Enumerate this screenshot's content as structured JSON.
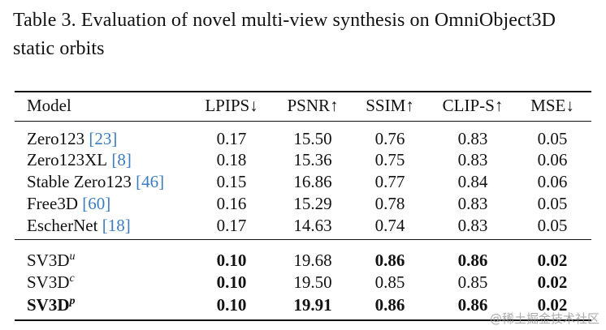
{
  "caption": "Table 3.  Evaluation of novel multi-view synthesis on OmniObject3D static orbits",
  "table": {
    "header": [
      "Model",
      "LPIPS↓",
      "PSNR↑",
      "SSIM↑",
      "CLIP-S↑",
      "MSE↓"
    ],
    "rows": [
      {
        "model": {
          "name": "Zero123",
          "cite": "[23]"
        },
        "cells": [
          {
            "text": "0.17"
          },
          {
            "text": "15.50"
          },
          {
            "text": "0.76"
          },
          {
            "text": "0.83"
          },
          {
            "text": "0.05"
          }
        ]
      },
      {
        "model": {
          "name": "Zero123XL",
          "cite": "[8]"
        },
        "cells": [
          {
            "text": "0.18"
          },
          {
            "text": "15.36"
          },
          {
            "text": "0.75"
          },
          {
            "text": "0.83"
          },
          {
            "text": "0.06"
          }
        ]
      },
      {
        "model": {
          "name": "Stable Zero123",
          "cite": "[46]"
        },
        "cells": [
          {
            "text": "0.15"
          },
          {
            "text": "16.86"
          },
          {
            "text": "0.77"
          },
          {
            "text": "0.84"
          },
          {
            "text": "0.06"
          }
        ]
      },
      {
        "model": {
          "name": "Free3D",
          "cite": "[60]"
        },
        "cells": [
          {
            "text": "0.16"
          },
          {
            "text": "15.29"
          },
          {
            "text": "0.78"
          },
          {
            "text": "0.83"
          },
          {
            "text": "0.05"
          }
        ]
      },
      {
        "model": {
          "name": "EscherNet",
          "cite": "[18]"
        },
        "cells": [
          {
            "text": "0.17"
          },
          {
            "text": "14.63"
          },
          {
            "text": "0.74"
          },
          {
            "text": "0.83"
          },
          {
            "text": "0.05"
          }
        ]
      },
      {
        "model": {
          "name": "SV3D",
          "sup": "u"
        },
        "cells": [
          {
            "text": "0.10",
            "bold": true
          },
          {
            "text": "19.68"
          },
          {
            "text": "0.86",
            "bold": true
          },
          {
            "text": "0.86",
            "bold": true
          },
          {
            "text": "0.02",
            "bold": true
          }
        ]
      },
      {
        "model": {
          "name": "SV3D",
          "sup": "c"
        },
        "cells": [
          {
            "text": "0.10",
            "bold": true
          },
          {
            "text": "19.50"
          },
          {
            "text": "0.85"
          },
          {
            "text": "0.85"
          },
          {
            "text": "0.02",
            "bold": true
          }
        ]
      },
      {
        "model": {
          "name": "SV3D",
          "sup": "p",
          "bold": true
        },
        "cells": [
          {
            "text": "0.10",
            "bold": true
          },
          {
            "text": "19.91",
            "bold": true
          },
          {
            "text": "0.86",
            "bold": true
          },
          {
            "text": "0.86",
            "bold": true
          },
          {
            "text": "0.02",
            "bold": true
          }
        ]
      }
    ]
  },
  "watermark": "@稀土掘金技术社区"
}
